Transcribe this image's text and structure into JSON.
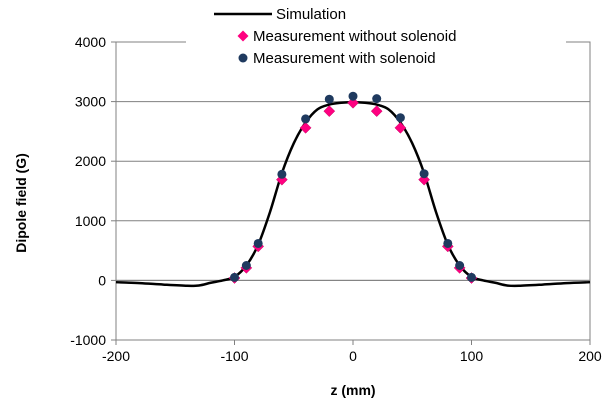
{
  "chart_data": {
    "type": "scatter",
    "title": "",
    "xlabel": "z (mm)",
    "ylabel": "Dipole field (G)",
    "xlim": [
      -200,
      200
    ],
    "ylim": [
      -1000,
      4000
    ],
    "xticks": [
      -200,
      -100,
      0,
      100,
      200
    ],
    "yticks": [
      -1000,
      0,
      1000,
      2000,
      3000,
      4000
    ],
    "xtick_labels": [
      "-200",
      "-100",
      "0",
      "100",
      "200"
    ],
    "ytick_labels": [
      "-1000",
      "0",
      "1000",
      "2000",
      "3000",
      "4000"
    ],
    "grid": "horizontal",
    "legend_position": "top",
    "series": [
      {
        "name": "Simulation",
        "kind": "line",
        "color": "#000000",
        "x": [
          -200,
          -180,
          -160,
          -140,
          -130,
          -120,
          -110,
          -100,
          -90,
          -80,
          -70,
          -60,
          -50,
          -40,
          -30,
          -20,
          -10,
          0,
          10,
          20,
          30,
          40,
          50,
          60,
          70,
          80,
          90,
          100,
          110,
          120,
          130,
          140,
          160,
          180,
          200
        ],
        "y": [
          -30,
          -45,
          -70,
          -90,
          -85,
          -40,
          0,
          60,
          250,
          600,
          1150,
          1800,
          2300,
          2650,
          2870,
          2950,
          2980,
          2990,
          2980,
          2950,
          2870,
          2650,
          2300,
          1800,
          1150,
          600,
          250,
          60,
          0,
          -40,
          -85,
          -90,
          -70,
          -45,
          -30
        ]
      },
      {
        "name": "Measurement without solenoid",
        "kind": "marker-diamond",
        "color": "#ff0080",
        "x": [
          -100,
          -90,
          -80,
          -60,
          -40,
          -20,
          0,
          20,
          40,
          60,
          80,
          90,
          100
        ],
        "y": [
          40,
          210,
          570,
          1690,
          2560,
          2840,
          2980,
          2840,
          2560,
          1690,
          570,
          210,
          40
        ]
      },
      {
        "name": "Measurement with solenoid",
        "kind": "marker-circle",
        "color": "#1f3a5f",
        "x": [
          -100,
          -90,
          -80,
          -60,
          -40,
          -20,
          0,
          20,
          40,
          60,
          80,
          90,
          100
        ],
        "y": [
          50,
          250,
          620,
          1780,
          2710,
          3040,
          3090,
          3050,
          2730,
          1790,
          620,
          250,
          50
        ]
      }
    ]
  }
}
